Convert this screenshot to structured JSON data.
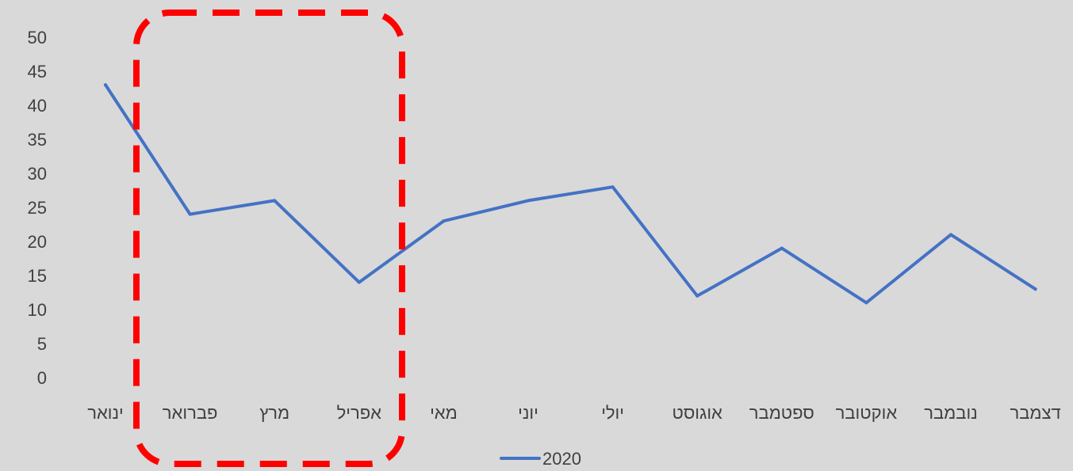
{
  "chart_data": {
    "type": "line",
    "categories": [
      "ינואר",
      "פברואר",
      "מרץ",
      "אפריל",
      "מאי",
      "יוני",
      "יולי",
      "אוגוסט",
      "ספטמבר",
      "אוקטובר",
      "נובמבר",
      "דצמבר"
    ],
    "series": [
      {
        "name": "2020",
        "values": [
          43,
          24,
          26,
          14,
          23,
          26,
          28,
          12,
          19,
          11,
          21,
          13
        ],
        "color": "#4472c4"
      }
    ],
    "yticks": [
      0,
      5,
      10,
      15,
      20,
      25,
      30,
      35,
      40,
      45,
      50
    ],
    "ylim": [
      0,
      50
    ],
    "grid": false,
    "legend_position": "bottom-center",
    "highlight": {
      "shape": "dashed-rounded-rectangle",
      "color": "#ff0000",
      "covers_categories": [
        "פברואר",
        "מרץ",
        "אפריל"
      ]
    }
  }
}
